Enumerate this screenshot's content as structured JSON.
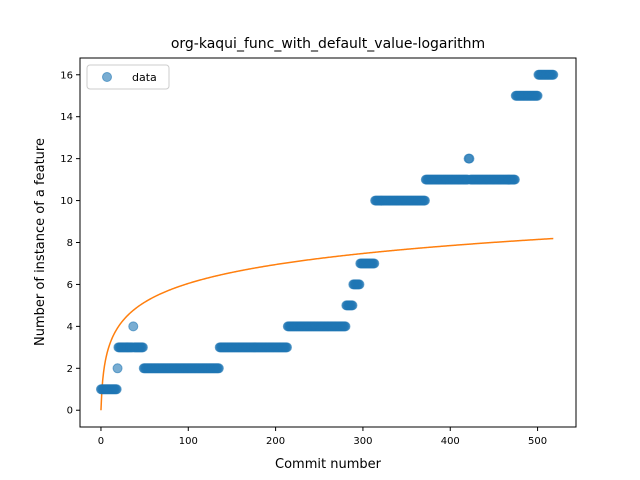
{
  "chart_data": {
    "type": "scatter",
    "title": "org-kaqui_func_with_default_value-logarithm",
    "xlabel": "Commit number",
    "ylabel": "Number of instance of a feature",
    "xlim": [
      -24,
      544
    ],
    "ylim": [
      -0.8,
      16.8
    ],
    "xticks": [
      0,
      100,
      200,
      300,
      400,
      500
    ],
    "yticks": [
      0,
      2,
      4,
      6,
      8,
      10,
      12,
      14,
      16
    ],
    "grid": false,
    "legend": {
      "position": "top-left",
      "entries": [
        "data"
      ]
    },
    "colors": {
      "data": "#1f77b4",
      "fit": "#ff7f0e"
    },
    "series": [
      {
        "name": "data",
        "kind": "scatter",
        "segments": [
          {
            "x_start": 0,
            "x_end": 18,
            "y": 1
          },
          {
            "x_start": 19,
            "x_end": 19,
            "y": 2
          },
          {
            "x_start": 20,
            "x_end": 36,
            "y": 3
          },
          {
            "x_start": 37,
            "x_end": 37,
            "y": 4
          },
          {
            "x_start": 38,
            "x_end": 48,
            "y": 3
          },
          {
            "x_start": 49,
            "x_end": 135,
            "y": 2
          },
          {
            "x_start": 136,
            "x_end": 213,
            "y": 3
          },
          {
            "x_start": 214,
            "x_end": 280,
            "y": 4
          },
          {
            "x_start": 281,
            "x_end": 288,
            "y": 5
          },
          {
            "x_start": 289,
            "x_end": 296,
            "y": 6
          },
          {
            "x_start": 297,
            "x_end": 313,
            "y": 7
          },
          {
            "x_start": 314,
            "x_end": 371,
            "y": 10
          },
          {
            "x_start": 372,
            "x_end": 420,
            "y": 11
          },
          {
            "x_start": 421,
            "x_end": 422,
            "y": 12
          },
          {
            "x_start": 423,
            "x_end": 474,
            "y": 11
          },
          {
            "x_start": 475,
            "x_end": 500,
            "y": 15
          },
          {
            "x_start": 501,
            "x_end": 518,
            "y": 16
          }
        ]
      },
      {
        "name": "fit",
        "kind": "line",
        "function": "a*ln(1+x)",
        "a": 1.31,
        "x_range": [
          0,
          518
        ]
      }
    ]
  }
}
